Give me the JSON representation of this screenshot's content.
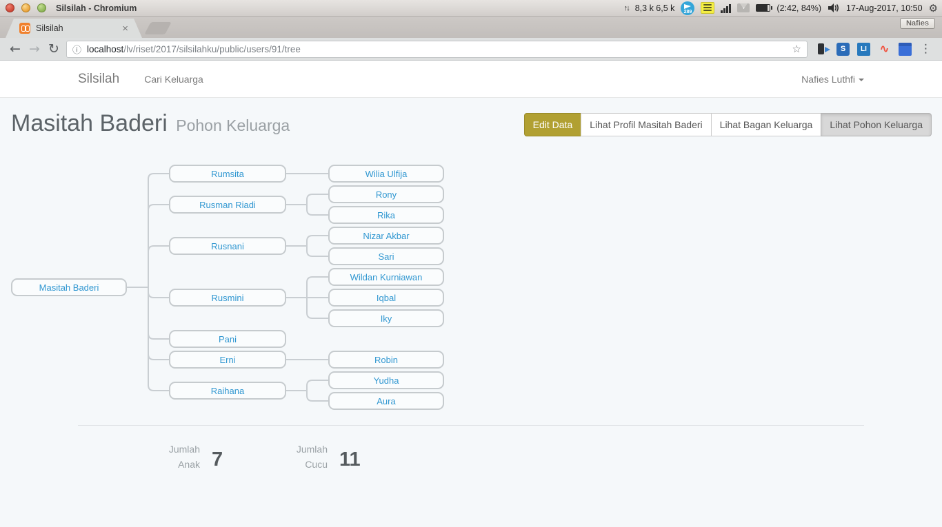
{
  "desktop": {
    "window_title": "Silsilah - Chromium",
    "net_rate": "8,3 k 6,5 k",
    "messenger_badge": "289",
    "battery_status": "(2:42, 84%)",
    "clock": "17-Aug-2017, 10:50",
    "session_label": "Nafies"
  },
  "browser": {
    "tab_title": "Silsilah",
    "url_host": "localhost",
    "url_path": "/lv/riset/2017/silsilahku/public/users/91/tree"
  },
  "navbar": {
    "brand": "Silsilah",
    "search_link": "Cari Keluarga",
    "user_menu": "Nafies Luthfi"
  },
  "page": {
    "title": "Masitah Baderi",
    "subtitle": "Pohon Keluarga"
  },
  "actions": {
    "edit": "Edit Data",
    "profile": "Lihat Profil Masitah Baderi",
    "bagan": "Lihat Bagan Keluarga",
    "pohon": "Lihat Pohon Keluarga"
  },
  "tree": {
    "root": "Masitah Baderi",
    "children": [
      {
        "name": "Rumsita",
        "children": [
          "Wilia Ulfija"
        ]
      },
      {
        "name": "Rusman Riadi",
        "children": [
          "Rony",
          "Rika"
        ]
      },
      {
        "name": "Rusnani",
        "children": [
          "Nizar Akbar",
          "Sari"
        ]
      },
      {
        "name": "Rusmini",
        "children": [
          "Wildan Kurniawan",
          "Iqbal",
          "Iky"
        ]
      },
      {
        "name": "Pani",
        "children": []
      },
      {
        "name": "Erni",
        "children": [
          "Robin"
        ]
      },
      {
        "name": "Raihana",
        "children": [
          "Yudha",
          "Aura"
        ]
      }
    ]
  },
  "stats": {
    "anak_l1": "Jumlah",
    "anak_l2": "Anak",
    "anak_value": "7",
    "cucu_l1": "Jumlah",
    "cucu_l2": "Cucu",
    "cucu_value": "11"
  },
  "colors": {
    "link_blue": "#3097d1",
    "edit_button_bg": "#b1a032",
    "connector_gray": "#c9ced2",
    "page_bg": "#f5f8fa"
  }
}
